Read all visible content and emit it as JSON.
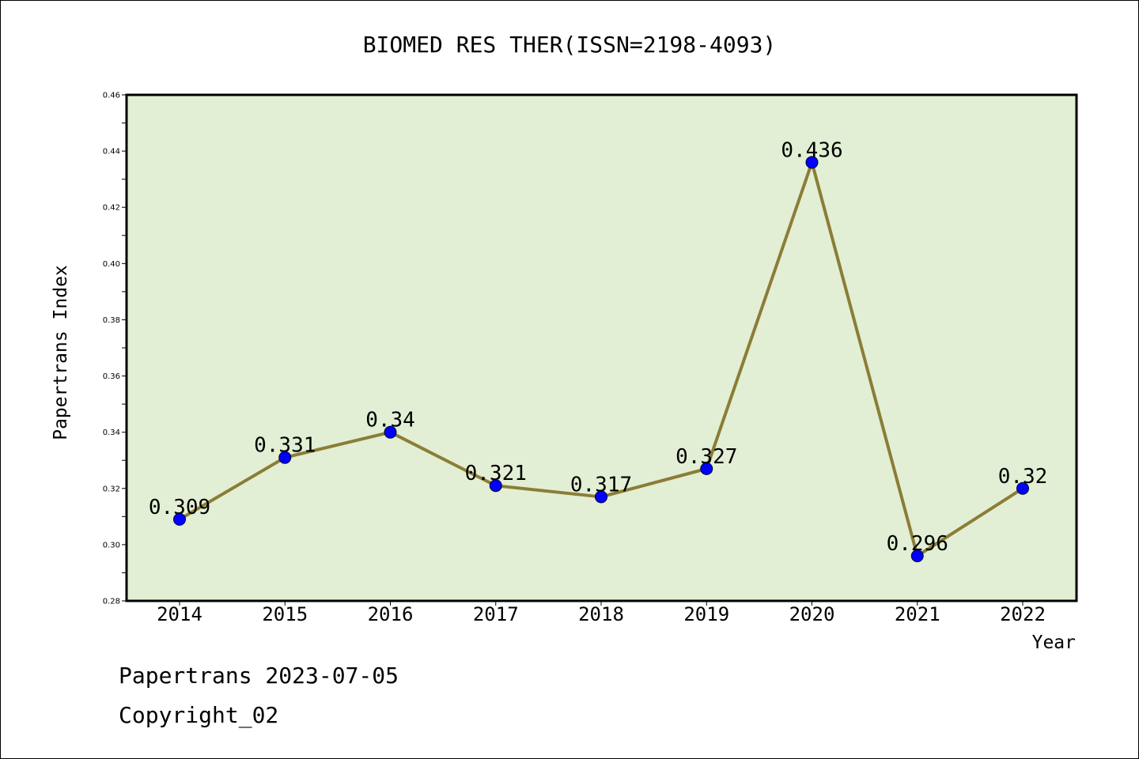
{
  "chart_data": {
    "type": "line",
    "title": "BIOMED RES THER(ISSN=2198-4093)",
    "xlabel": "Year",
    "ylabel": "Papertrans Index",
    "categories": [
      "2014",
      "2015",
      "2016",
      "2017",
      "2018",
      "2019",
      "2020",
      "2021",
      "2022"
    ],
    "values": [
      0.309,
      0.331,
      0.34,
      0.321,
      0.317,
      0.327,
      0.436,
      0.296,
      0.32
    ],
    "data_labels": [
      "0.309",
      "0.331",
      "0.34",
      "0.321",
      "0.317",
      "0.327",
      "0.436",
      "0.296",
      "0.32"
    ],
    "ylim": [
      0.28,
      0.46
    ],
    "yticks": [
      "0.28",
      "0.30",
      "0.32",
      "0.34",
      "0.36",
      "0.38",
      "0.40",
      "0.42",
      "0.44",
      "0.46"
    ],
    "grid": false,
    "legend": "none",
    "colors": {
      "plot_background": "#e2efd4",
      "line": "#8b7d37",
      "marker": "#0000ff",
      "axes": "#000000"
    }
  },
  "footer": {
    "source": "Papertrans 2023-07-05",
    "copyright": "Copyright_02"
  }
}
